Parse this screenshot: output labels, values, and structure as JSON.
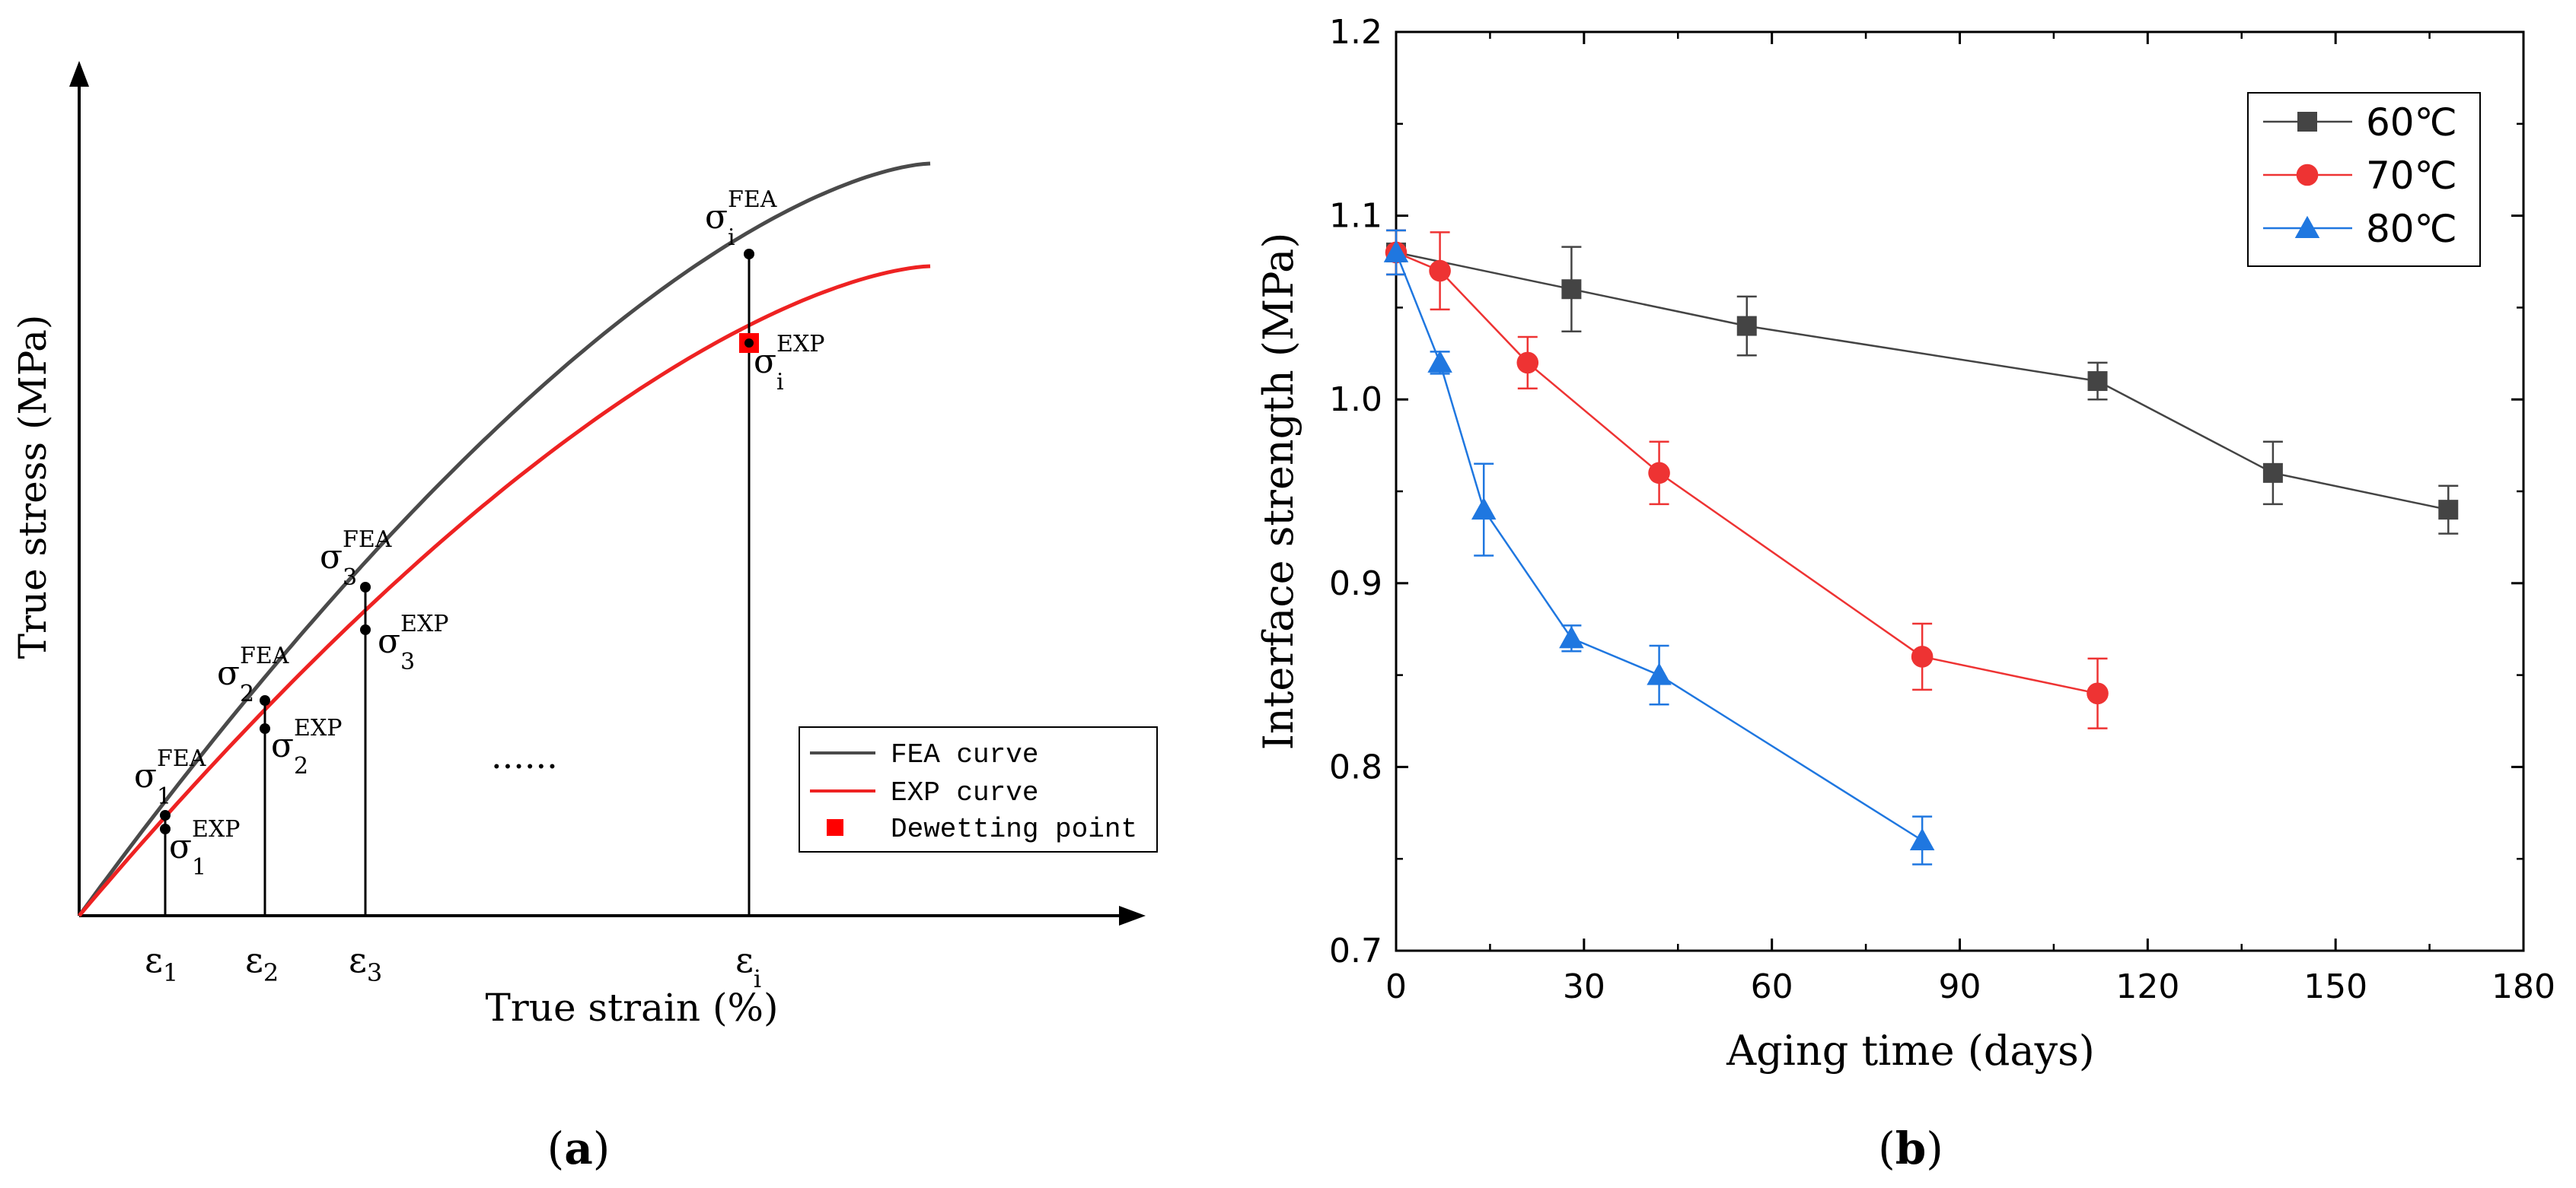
{
  "panel_a": {
    "caption": "a",
    "ylabel": "True stress (MPa)",
    "xlabel": "True strain (%)",
    "legend": [
      "FEA curve",
      "EXP curve",
      "Dewetting point"
    ],
    "ellipsis": "......",
    "sigma": "σ",
    "points": [
      {
        "strain_symbol": "ε",
        "index": "1",
        "fea_sup": "FEA",
        "exp_sup": "EXP"
      },
      {
        "strain_symbol": "ε",
        "index": "2",
        "fea_sup": "FEA",
        "exp_sup": "EXP"
      },
      {
        "strain_symbol": "ε",
        "index": "3",
        "fea_sup": "FEA",
        "exp_sup": "EXP"
      },
      {
        "strain_symbol": "ε",
        "index": "i",
        "fea_sup": "FEA",
        "exp_sup": "EXP"
      }
    ],
    "colors": {
      "fea": "#4a4a4a",
      "exp": "#ee2222",
      "dewetting": "#ff0000"
    }
  },
  "chart_data": [
    {
      "type": "line",
      "title": "(a)",
      "xlabel": "True strain (%)",
      "ylabel": "True stress (MPa)",
      "x_ticks": [
        "ε1",
        "ε2",
        "ε3",
        "εi"
      ],
      "series": [
        {
          "name": "FEA curve",
          "x": [
            0,
            0.1,
            0.2,
            0.3,
            0.4,
            0.5,
            0.6,
            0.7,
            0.8,
            0.9,
            1.0
          ],
          "values": [
            0,
            0.13,
            0.25,
            0.37,
            0.49,
            0.6,
            0.7,
            0.79,
            0.86,
            0.93,
            0.99
          ]
        },
        {
          "name": "EXP curve",
          "x": [
            0,
            0.1,
            0.2,
            0.3,
            0.4,
            0.5,
            0.6,
            0.7,
            0.8,
            0.9,
            1.0
          ],
          "values": [
            0,
            0.12,
            0.23,
            0.33,
            0.43,
            0.52,
            0.6,
            0.67,
            0.74,
            0.79,
            0.84
          ]
        }
      ],
      "annotations": [
        "σ1 FEA",
        "σ1 EXP",
        "σ2 FEA",
        "σ2 EXP",
        "σ3 FEA",
        "σ3 EXP",
        "σi FEA",
        "σi EXP",
        "Dewetting point"
      ]
    },
    {
      "type": "line",
      "title": "(b)",
      "xlabel": "Aging time (days)",
      "ylabel": "Interface strength (MPa)",
      "xlim": [
        0,
        180
      ],
      "ylim": [
        0.7,
        1.2
      ],
      "x_ticks": [
        0,
        30,
        60,
        90,
        120,
        150,
        180
      ],
      "y_ticks": [
        0.7,
        0.8,
        0.9,
        1.0,
        1.1,
        1.2
      ],
      "y_tick_labels": [
        "0.7",
        "0.8",
        "0.9",
        "1.0",
        "1.1",
        "1.2"
      ],
      "legend_position": "top-right",
      "series": [
        {
          "name": "60℃",
          "color": "#444444",
          "marker": "square",
          "x": [
            0,
            28,
            56,
            112,
            140,
            168
          ],
          "values": [
            1.08,
            1.06,
            1.04,
            1.01,
            0.96,
            0.94
          ],
          "errors": [
            0.012,
            0.023,
            0.016,
            0.01,
            0.017,
            0.013
          ]
        },
        {
          "name": "70℃",
          "color": "#ee3333",
          "marker": "circle",
          "x": [
            0,
            7,
            21,
            42,
            84,
            112
          ],
          "values": [
            1.08,
            1.07,
            1.02,
            0.96,
            0.86,
            0.84
          ],
          "errors": [
            0.012,
            0.021,
            0.014,
            0.017,
            0.018,
            0.019
          ]
        },
        {
          "name": "80℃",
          "color": "#1f77e0",
          "marker": "triangle",
          "x": [
            0,
            7,
            14,
            28,
            42,
            84
          ],
          "values": [
            1.08,
            1.02,
            0.94,
            0.87,
            0.85,
            0.76
          ],
          "errors": [
            0.012,
            0.006,
            0.025,
            0.007,
            0.016,
            0.013
          ]
        }
      ]
    }
  ],
  "panel_b": {
    "caption": "b"
  }
}
